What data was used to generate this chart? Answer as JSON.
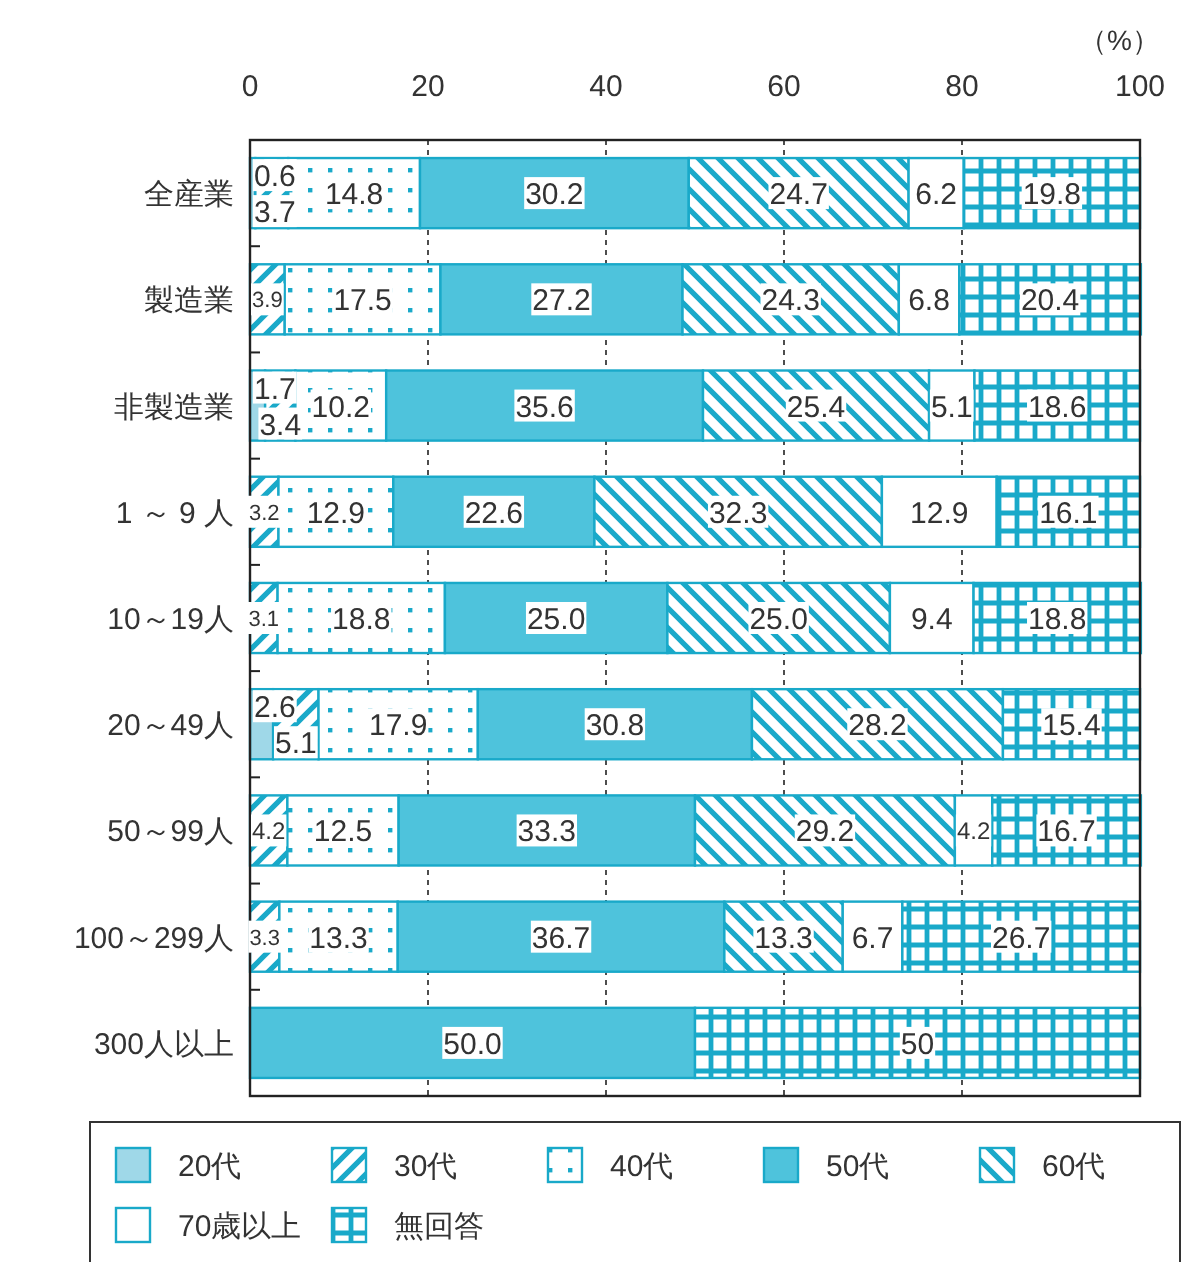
{
  "chart_data": {
    "type": "bar",
    "orientation": "horizontal",
    "stacked": true,
    "xlabel": "（%）",
    "xlim": [
      0,
      100
    ],
    "xticks": [
      0,
      20,
      40,
      60,
      80,
      100
    ],
    "grid": "x",
    "legend": "bottom",
    "categories": [
      "全産業",
      "製造業",
      "非製造業",
      "1 ～ 9 人",
      "10～19人",
      "20～49人",
      "50～99人",
      "100～299人",
      "300人以上"
    ],
    "series": [
      {
        "name": "20代",
        "color": "#9fd8e8",
        "values": [
          0.6,
          null,
          1.7,
          null,
          null,
          2.6,
          null,
          null,
          null
        ],
        "value_labels": [
          "0.6",
          null,
          "1.7",
          null,
          null,
          "2.6",
          null,
          null,
          null
        ]
      },
      {
        "name": "30代",
        "color": "#19a9c9",
        "values": [
          3.7,
          3.9,
          3.4,
          3.2,
          3.1,
          5.1,
          4.2,
          3.3,
          null
        ],
        "value_labels": [
          "3.7",
          "3.9",
          "3.4",
          "3.2",
          "3.1",
          "5.1",
          "4.2",
          "3.3",
          null
        ]
      },
      {
        "name": "40代",
        "color": "#19a9c9",
        "values": [
          14.8,
          17.5,
          10.2,
          12.9,
          18.8,
          17.9,
          12.5,
          13.3,
          null
        ],
        "value_labels": [
          "14.8",
          "17.5",
          "10.2",
          "12.9",
          "18.8",
          "17.9",
          "12.5",
          "13.3",
          null
        ]
      },
      {
        "name": "50代",
        "color": "#4ec3dc",
        "values": [
          30.2,
          27.2,
          35.6,
          22.6,
          25.0,
          30.8,
          33.3,
          36.7,
          50.0
        ],
        "value_labels": [
          "30.2",
          "27.2",
          "35.6",
          "22.6",
          "25.0",
          "30.8",
          "33.3",
          "36.7",
          "50.0"
        ]
      },
      {
        "name": "60代",
        "color": "#19a9c9",
        "values": [
          24.7,
          24.3,
          25.4,
          32.3,
          25.0,
          28.2,
          29.2,
          13.3,
          null
        ],
        "value_labels": [
          "24.7",
          "24.3",
          "25.4",
          "32.3",
          "25.0",
          "28.2",
          "29.2",
          "13.3",
          null
        ]
      },
      {
        "name": "70歳以上",
        "color": "#ffffff",
        "values": [
          6.2,
          6.8,
          5.1,
          12.9,
          9.4,
          null,
          4.2,
          6.7,
          null
        ],
        "value_labels": [
          "6.2",
          "6.8",
          "5.1",
          "12.9",
          "9.4",
          null,
          "4.2",
          "6.7",
          null
        ]
      },
      {
        "name": "無回答",
        "color": "#19a9c9",
        "values": [
          19.8,
          20.4,
          18.6,
          16.1,
          18.8,
          15.4,
          16.7,
          26.7,
          50
        ],
        "value_labels": [
          "19.8",
          "20.4",
          "18.6",
          "16.1",
          "18.8",
          "15.4",
          "16.7",
          "26.7",
          "50"
        ]
      }
    ]
  }
}
